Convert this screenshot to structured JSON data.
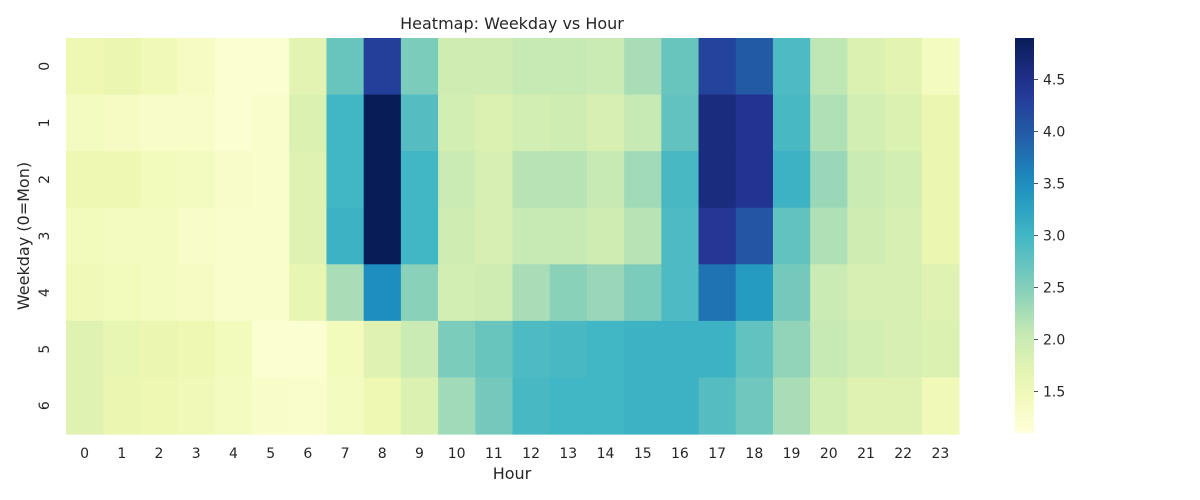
{
  "chart_data": {
    "type": "heatmap",
    "title": "Heatmap: Weekday vs Hour",
    "xlabel": "Hour",
    "ylabel": "Weekday (0=Mon)",
    "x_categories": [
      "0",
      "1",
      "2",
      "3",
      "4",
      "5",
      "6",
      "7",
      "8",
      "9",
      "10",
      "11",
      "12",
      "13",
      "14",
      "15",
      "16",
      "17",
      "18",
      "19",
      "20",
      "21",
      "22",
      "23"
    ],
    "y_categories": [
      "0",
      "1",
      "2",
      "3",
      "4",
      "5",
      "6"
    ],
    "values": [
      [
        1.55,
        1.6,
        1.5,
        1.35,
        1.2,
        1.2,
        1.7,
        2.7,
        4.3,
        2.55,
        1.95,
        1.95,
        2.05,
        2.05,
        2.0,
        2.25,
        2.7,
        4.25,
        4.0,
        2.9,
        2.1,
        1.8,
        1.7,
        1.4
      ],
      [
        1.4,
        1.35,
        1.3,
        1.3,
        1.2,
        1.25,
        1.8,
        3.0,
        4.9,
        2.85,
        1.9,
        1.8,
        1.9,
        1.95,
        1.85,
        2.05,
        2.75,
        4.6,
        4.45,
        2.95,
        2.2,
        1.9,
        1.8,
        1.6
      ],
      [
        1.55,
        1.55,
        1.45,
        1.4,
        1.3,
        1.25,
        1.75,
        3.0,
        4.9,
        3.0,
        2.0,
        1.85,
        2.15,
        2.15,
        2.05,
        2.3,
        2.95,
        4.6,
        4.45,
        3.05,
        2.35,
        2.0,
        1.9,
        1.6
      ],
      [
        1.45,
        1.4,
        1.4,
        1.3,
        1.25,
        1.25,
        1.75,
        3.05,
        4.9,
        3.0,
        1.95,
        1.85,
        2.05,
        2.05,
        1.95,
        2.15,
        2.9,
        4.4,
        4.05,
        2.75,
        2.2,
        1.95,
        1.85,
        1.6
      ],
      [
        1.5,
        1.45,
        1.4,
        1.35,
        1.25,
        1.25,
        1.65,
        2.25,
        3.5,
        2.45,
        1.9,
        1.95,
        2.25,
        2.45,
        2.35,
        2.55,
        2.9,
        3.75,
        3.35,
        2.6,
        2.0,
        1.85,
        1.85,
        1.75
      ],
      [
        1.75,
        1.65,
        1.6,
        1.55,
        1.45,
        1.2,
        1.2,
        1.45,
        1.75,
        2.0,
        2.55,
        2.7,
        2.9,
        2.95,
        3.0,
        3.05,
        3.05,
        3.05,
        2.75,
        2.4,
        2.05,
        1.9,
        1.85,
        1.8
      ],
      [
        1.75,
        1.6,
        1.55,
        1.5,
        1.4,
        1.3,
        1.25,
        1.4,
        1.55,
        1.8,
        2.3,
        2.6,
        2.95,
        3.0,
        3.0,
        3.05,
        3.05,
        2.85,
        2.65,
        2.25,
        1.9,
        1.75,
        1.75,
        1.5
      ]
    ],
    "colormap": "YlGnBu",
    "value_range": [
      1.1,
      4.9
    ],
    "colorbar_ticks": [
      "1.5",
      "2.0",
      "2.5",
      "3.0",
      "3.5",
      "4.0",
      "4.5"
    ]
  }
}
